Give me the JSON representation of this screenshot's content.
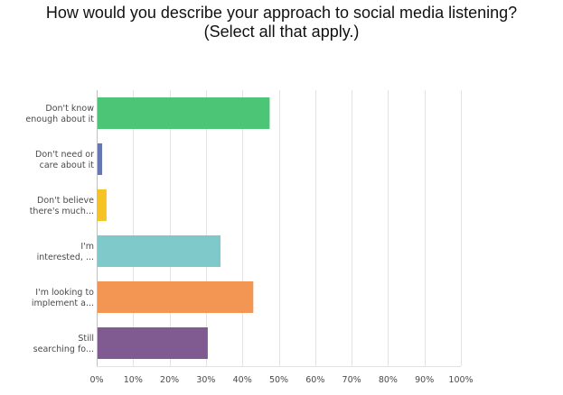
{
  "chart_data": {
    "type": "bar",
    "orientation": "horizontal",
    "title": [
      "How would you describe your approach to social media listening?",
      "(Select all that apply.)"
    ],
    "categories": [
      [
        "Don't know",
        "enough about it"
      ],
      [
        "Don't need or",
        "care about it"
      ],
      [
        "Don't believe",
        "there's much..."
      ],
      [
        "I'm",
        "interested, ..."
      ],
      [
        "I'm looking to",
        "implement a..."
      ],
      [
        "Still",
        "searching fo..."
      ]
    ],
    "values": [
      47.5,
      1.5,
      2.7,
      34,
      43,
      30.5
    ],
    "colors": [
      "#4cc577",
      "#6777b2",
      "#f5c324",
      "#7fc9ca",
      "#f39553",
      "#7f5b91"
    ],
    "x_unit": "%",
    "xlim": [
      0,
      100
    ],
    "x_ticks": [
      0,
      10,
      20,
      30,
      40,
      50,
      60,
      70,
      80,
      90,
      100
    ],
    "x_tick_labels": [
      "0%",
      "10%",
      "20%",
      "30%",
      "40%",
      "50%",
      "60%",
      "70%",
      "80%",
      "90%",
      "100%"
    ],
    "grid": true,
    "legend": "none"
  }
}
